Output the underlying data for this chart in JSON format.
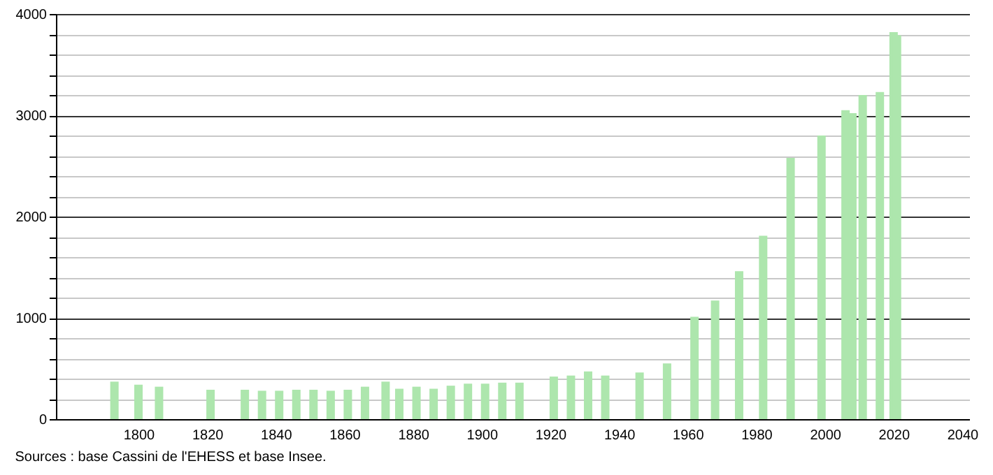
{
  "chart_data": {
    "type": "bar",
    "annotations": [
      "Sources : base Cassini de l'EHESS et base Insee."
    ],
    "x": [
      1793,
      1800,
      1806,
      1821,
      1831,
      1836,
      1841,
      1846,
      1851,
      1856,
      1861,
      1866,
      1872,
      1876,
      1881,
      1886,
      1891,
      1896,
      1901,
      1906,
      1911,
      1921,
      1926,
      1931,
      1936,
      1946,
      1954,
      1962,
      1968,
      1975,
      1982,
      1990,
      1999,
      2006,
      2008,
      2011,
      2016,
      2020,
      2021
    ],
    "values": [
      370,
      340,
      320,
      290,
      290,
      280,
      280,
      290,
      290,
      280,
      290,
      320,
      370,
      300,
      320,
      300,
      330,
      350,
      350,
      360,
      360,
      420,
      430,
      470,
      430,
      460,
      550,
      1010,
      1170,
      1460,
      1810,
      2580,
      2800,
      3050,
      3020,
      3200,
      3230,
      3820,
      3790
    ],
    "color": "#ade6ad",
    "xlim": [
      1778,
      2040
    ],
    "xticks": [
      1800,
      1820,
      1840,
      1860,
      1880,
      1900,
      1920,
      1940,
      1960,
      1980,
      2000,
      2020,
      2040
    ],
    "ylim": [
      0,
      4000
    ],
    "yticks": [
      0,
      {
        "value": 200,
        "label": null
      },
      {
        "value": 400,
        "label": null
      },
      {
        "value": 600,
        "label": null
      },
      {
        "value": 800,
        "label": null
      },
      1000,
      {
        "value": 1200,
        "label": null
      },
      {
        "value": 1400,
        "label": null
      },
      {
        "value": 1600,
        "label": null
      },
      {
        "value": 1800,
        "label": null
      },
      2000,
      {
        "value": 2200,
        "label": null
      },
      {
        "value": 2400,
        "label": null
      },
      {
        "value": 2600,
        "label": null
      },
      {
        "value": 2800,
        "label": null
      },
      3000,
      {
        "value": 3200,
        "label": null
      },
      {
        "value": 3400,
        "label": null
      },
      {
        "value": 3600,
        "label": null
      },
      {
        "value": 3800,
        "label": null
      },
      4000
    ],
    "grid": "y"
  }
}
